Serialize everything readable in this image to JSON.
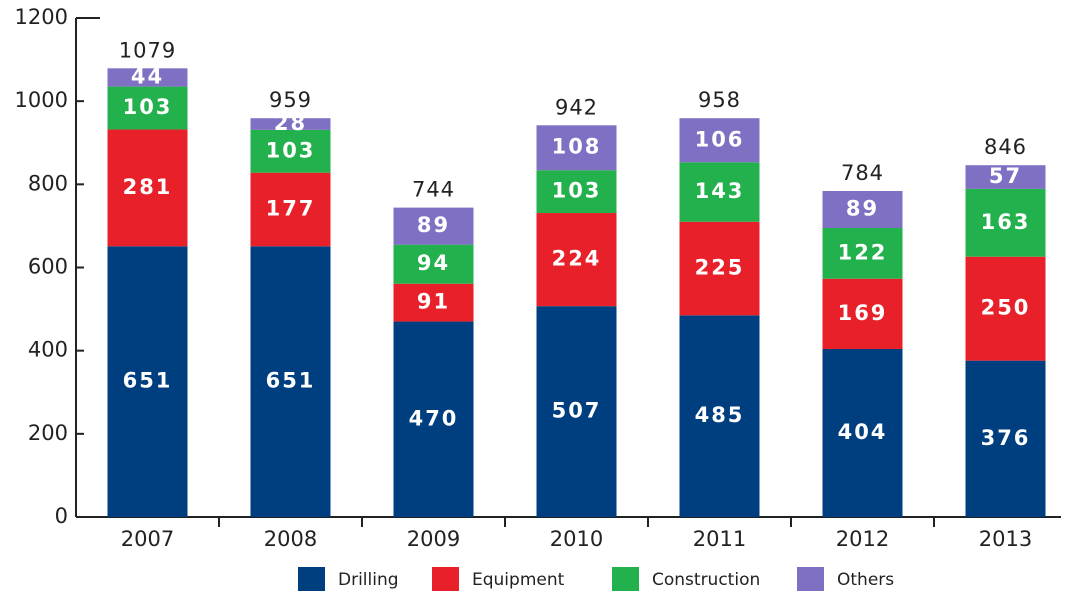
{
  "chart_data": {
    "type": "stacked-bar",
    "categories": [
      "2007",
      "2008",
      "2009",
      "2010",
      "2011",
      "2012",
      "2013"
    ],
    "series": [
      {
        "name": "Drilling",
        "color": "#003f7f",
        "values": [
          651,
          651,
          470,
          507,
          485,
          404,
          376
        ]
      },
      {
        "name": "Equipment",
        "color": "#e8202a",
        "values": [
          281,
          177,
          91,
          224,
          225,
          169,
          250
        ]
      },
      {
        "name": "Construction",
        "color": "#22b14c",
        "values": [
          103,
          103,
          94,
          103,
          143,
          122,
          163
        ]
      },
      {
        "name": "Others",
        "color": "#7f70c4",
        "values": [
          44,
          28,
          89,
          108,
          106,
          89,
          57
        ]
      }
    ],
    "totals": [
      1079,
      959,
      744,
      942,
      958,
      784,
      846
    ],
    "ylim": [
      0,
      1200
    ],
    "yticks": [
      0,
      200,
      400,
      600,
      800,
      1000,
      1200
    ]
  }
}
